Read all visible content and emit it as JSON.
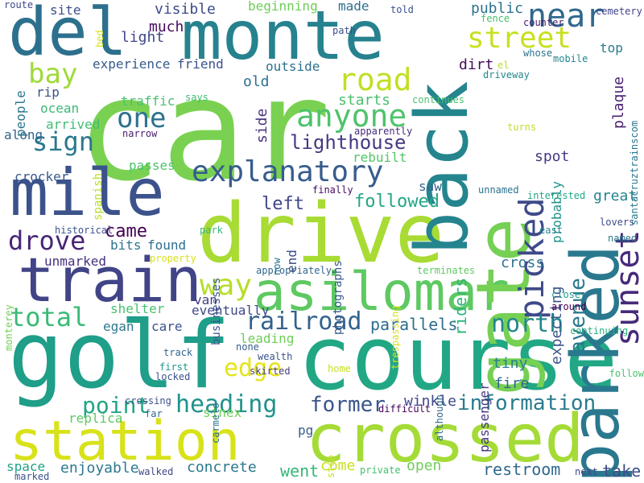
{
  "words": [
    {
      "text": "car",
      "color": "#7ad151"
    },
    {
      "text": "course",
      "color": "#22a785"
    },
    {
      "text": "golf",
      "color": "#1f9e89"
    },
    {
      "text": "crossed",
      "color": "#a5db36"
    },
    {
      "text": "drive",
      "color": "#a8db34"
    },
    {
      "text": "monte",
      "color": "#26828e"
    },
    {
      "text": "mile",
      "color": "#3b528b"
    },
    {
      "text": "del",
      "color": "#2d708e"
    },
    {
      "text": "train",
      "color": "#414487"
    },
    {
      "text": "station",
      "color": "#d8e219"
    },
    {
      "text": "parked",
      "color": "#2a788e"
    },
    {
      "text": "asilomar",
      "color": "#5ec962"
    },
    {
      "text": "back",
      "color": "#25858e"
    },
    {
      "text": "gate",
      "color": "#75d054"
    },
    {
      "text": "explanatory",
      "color": "#365c8d"
    },
    {
      "text": "sunset",
      "color": "#472a7a"
    },
    {
      "text": "picked",
      "color": "#3e4a89"
    },
    {
      "text": "anyone",
      "color": "#4ec36b"
    },
    {
      "text": "road",
      "color": "#c2df23"
    },
    {
      "text": "street",
      "color": "#c8e020"
    },
    {
      "text": "near",
      "color": "#31688e"
    },
    {
      "text": "bay",
      "color": "#9fda3a"
    },
    {
      "text": "one",
      "color": "#2c728e"
    },
    {
      "text": "sign",
      "color": "#2a778e"
    },
    {
      "text": "drove",
      "color": "#482576"
    },
    {
      "text": "way",
      "color": "#b5de2b"
    },
    {
      "text": "total",
      "color": "#3aba76"
    },
    {
      "text": "railroad",
      "color": "#33628d"
    },
    {
      "text": "edge",
      "color": "#e5e419"
    },
    {
      "text": "heading",
      "color": "#20928c"
    },
    {
      "text": "north",
      "color": "#24878e"
    },
    {
      "text": "information",
      "color": "#297b8e"
    },
    {
      "text": "former",
      "color": "#39568c"
    },
    {
      "text": "point",
      "color": "#21a685"
    },
    {
      "text": "lighthouse",
      "color": "#443a83"
    },
    {
      "text": "followed",
      "color": "#22a785"
    },
    {
      "text": "avenue",
      "color": "#2a788e"
    },
    {
      "text": "left",
      "color": "#404688"
    },
    {
      "text": "came",
      "color": "#440154"
    },
    {
      "text": "parallels",
      "color": "#2e6e8e"
    },
    {
      "text": "restroom",
      "color": "#31688e"
    },
    {
      "text": "concrete",
      "color": "#2a788e"
    },
    {
      "text": "enjoyable",
      "color": "#2a788e"
    },
    {
      "text": "went",
      "color": "#35b779"
    },
    {
      "text": "take",
      "color": "#3e4c8a"
    },
    {
      "text": "open",
      "color": "#6ece58"
    },
    {
      "text": "come",
      "color": "#cae11f"
    },
    {
      "text": "site",
      "color": "#3e4c8a"
    },
    {
      "text": "visible",
      "color": "#3e4a89"
    },
    {
      "text": "beginning",
      "color": "#6ece58"
    },
    {
      "text": "made",
      "color": "#2e6f8e"
    },
    {
      "text": "much",
      "color": "#460a5d"
    },
    {
      "text": "light",
      "color": "#3f4788"
    },
    {
      "text": "experience",
      "color": "#38598c"
    },
    {
      "text": "friend",
      "color": "#3b528b"
    },
    {
      "text": "public",
      "color": "#2c728e"
    },
    {
      "text": "top",
      "color": "#297a8e"
    },
    {
      "text": "plaque",
      "color": "#481f70"
    },
    {
      "text": "outside",
      "color": "#2d708e"
    },
    {
      "text": "dirt",
      "color": "#460b5e"
    },
    {
      "text": "ocean",
      "color": "#3aba76"
    },
    {
      "text": "rip",
      "color": "#3b528b"
    },
    {
      "text": "people",
      "color": "#2a778e"
    },
    {
      "text": "along",
      "color": "#32658e"
    },
    {
      "text": "arrived",
      "color": "#40bd72"
    },
    {
      "text": "traffic",
      "color": "#4ac16d"
    },
    {
      "text": "starts",
      "color": "#4ac16d"
    },
    {
      "text": "old",
      "color": "#2d718e"
    },
    {
      "text": "side",
      "color": "#46337f"
    },
    {
      "text": "crocker",
      "color": "#375a8c"
    },
    {
      "text": "spanish",
      "color": "#b8de29"
    },
    {
      "text": "passes",
      "color": "#4ec36b"
    },
    {
      "text": "rebuilt",
      "color": "#54c568"
    },
    {
      "text": "saw",
      "color": "#32658e"
    },
    {
      "text": "great",
      "color": "#25838e"
    },
    {
      "text": "cross",
      "color": "#2c738e"
    },
    {
      "text": "spot",
      "color": "#453882"
    },
    {
      "text": "riders",
      "color": "#2fb47c"
    },
    {
      "text": "expecting",
      "color": "#3a548c"
    },
    {
      "text": "probably",
      "color": "#20928c"
    },
    {
      "text": "photographs",
      "color": "#38598c"
    },
    {
      "text": "passenger",
      "color": "#453781"
    },
    {
      "text": "tiny",
      "color": "#27808e"
    },
    {
      "text": "fire",
      "color": "#32648e"
    },
    {
      "text": "winkle",
      "color": "#3f4788"
    },
    {
      "text": "found",
      "color": "#2d708e"
    },
    {
      "text": "bits",
      "color": "#2c728e"
    },
    {
      "text": "businesses",
      "color": "#39568c"
    },
    {
      "text": "end",
      "color": "#3d4e8a"
    },
    {
      "text": "unmarked",
      "color": "#46307e"
    },
    {
      "text": "replica",
      "color": "#5ec962"
    },
    {
      "text": "shelter",
      "color": "#4ac16d"
    },
    {
      "text": "van",
      "color": "#433e85"
    },
    {
      "text": "eventually",
      "color": "#3f4788"
    },
    {
      "text": "egan",
      "color": "#2a778e"
    },
    {
      "text": "care",
      "color": "#3b528b"
    },
    {
      "text": "leading",
      "color": "#6ece58"
    },
    {
      "text": "sinex",
      "color": "#6ece58"
    },
    {
      "text": "pg",
      "color": "#365d8d"
    },
    {
      "text": "space",
      "color": "#20a386"
    },
    {
      "text": "route",
      "color": "#3e4989"
    },
    {
      "text": "bed",
      "color": "#d8e219"
    },
    {
      "text": "path",
      "color": "#3b528b"
    },
    {
      "text": "told",
      "color": "#3b528b"
    },
    {
      "text": "fence",
      "color": "#46c06f"
    },
    {
      "text": "counter",
      "color": "#481c6e"
    },
    {
      "text": "cemetery",
      "color": "#404588"
    },
    {
      "text": "el",
      "color": "#b8de29"
    },
    {
      "text": "whose",
      "color": "#2c738e"
    },
    {
      "text": "mobile",
      "color": "#25858e"
    },
    {
      "text": "santacruztrainscom",
      "color": "#2a788e"
    },
    {
      "text": "driveway",
      "color": "#24878e"
    },
    {
      "text": "says",
      "color": "#3dbc74"
    },
    {
      "text": "continues",
      "color": "#4ac16d"
    },
    {
      "text": "apparently",
      "color": "#472c7a"
    },
    {
      "text": "turns",
      "color": "#c2df23"
    },
    {
      "text": "narrow",
      "color": "#481c6e"
    },
    {
      "text": "unnamed",
      "color": "#2c738e"
    },
    {
      "text": "east",
      "color": "#25848e"
    },
    {
      "text": "lovers",
      "color": "#3e4989"
    },
    {
      "text": "interested",
      "color": "#22a785"
    },
    {
      "text": "finally",
      "color": "#470d60"
    },
    {
      "text": "historical",
      "color": "#3b528b"
    },
    {
      "text": "park",
      "color": "#35b779"
    },
    {
      "text": "property",
      "color": "#d8e219"
    },
    {
      "text": "named",
      "color": "#2a778e"
    },
    {
      "text": "now",
      "color": "#2c738e"
    },
    {
      "text": "appropriately",
      "color": "#31688e"
    },
    {
      "text": "terminates",
      "color": "#5ec962"
    },
    {
      "text": "monterey",
      "color": "#73d056"
    },
    {
      "text": "trespassing",
      "color": "#d8e219"
    },
    {
      "text": "close",
      "color": "#1f9a8a"
    },
    {
      "text": "around",
      "color": "#440154"
    },
    {
      "text": "continuing",
      "color": "#2ab07f"
    },
    {
      "text": "track",
      "color": "#32658e"
    },
    {
      "text": "none",
      "color": "#365d8d"
    },
    {
      "text": "wealth",
      "color": "#3b528b"
    },
    {
      "text": "first",
      "color": "#1f968b"
    },
    {
      "text": "locked",
      "color": "#3b528b"
    },
    {
      "text": "carmelo",
      "color": "#2d708e"
    },
    {
      "text": "home",
      "color": "#c8e020"
    },
    {
      "text": "although",
      "color": "#31688e"
    },
    {
      "text": "follow",
      "color": "#4ac16d"
    },
    {
      "text": "crossing",
      "color": "#3b528b"
    },
    {
      "text": "skirted",
      "color": "#433e85"
    },
    {
      "text": "far",
      "color": "#32658e"
    },
    {
      "text": "difficult",
      "color": "#440154"
    },
    {
      "text": "step",
      "color": "#c2df23"
    },
    {
      "text": "walked",
      "color": "#3e4989"
    },
    {
      "text": "private",
      "color": "#44bf70"
    },
    {
      "text": "next",
      "color": "#3e4989"
    },
    {
      "text": "marked",
      "color": "#3b528b"
    }
  ]
}
